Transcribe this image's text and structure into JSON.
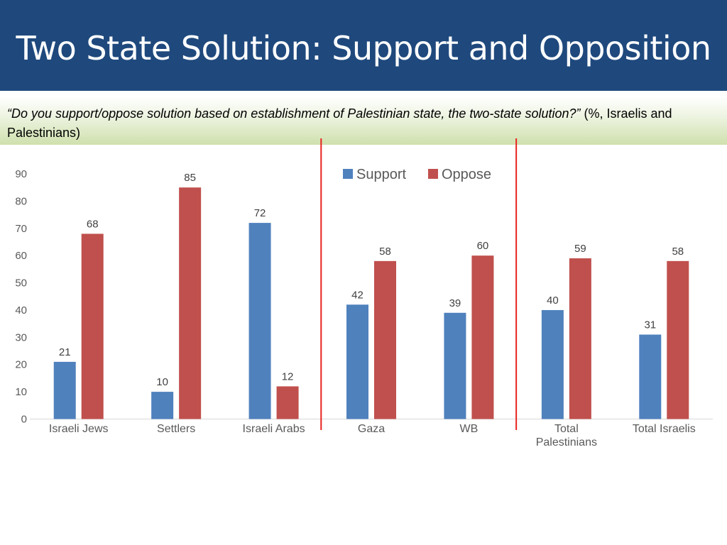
{
  "title": "Two State Solution: Support and Opposition",
  "subtitle": {
    "question": "“Do you support/oppose solution based on establishment of Palestinian state, the two-state solution?”",
    "suffix": " (%, Israelis and Palestinians)"
  },
  "colors": {
    "header_bg": "#1f497d",
    "support": "#4f81bd",
    "oppose": "#c0504d",
    "divider": "#e8231f"
  },
  "chart_data": {
    "type": "bar",
    "categories": [
      "Israeli Jews",
      "Settlers",
      "Israeli Arabs",
      "Gaza",
      "WB",
      "Total Palestinians",
      "Total Israelis"
    ],
    "category_lines": [
      [
        "Israeli Jews"
      ],
      [
        "Settlers"
      ],
      [
        "Israeli Arabs"
      ],
      [
        "Gaza"
      ],
      [
        "WB"
      ],
      [
        "Total",
        "Palestinians"
      ],
      [
        "Total Israelis"
      ]
    ],
    "series": [
      {
        "name": "Support",
        "values": [
          21,
          10,
          72,
          42,
          39,
          40,
          31
        ]
      },
      {
        "name": "Oppose",
        "values": [
          68,
          85,
          12,
          58,
          60,
          59,
          58
        ]
      }
    ],
    "yticks": [
      "0",
      "10",
      "20",
      "30",
      "40",
      "50",
      "60",
      "70",
      "80",
      "90"
    ],
    "ylim": [
      0,
      90
    ],
    "grid": false,
    "legend": "top-center",
    "group_dividers_after": [
      "Israeli Arabs",
      "WB"
    ]
  }
}
